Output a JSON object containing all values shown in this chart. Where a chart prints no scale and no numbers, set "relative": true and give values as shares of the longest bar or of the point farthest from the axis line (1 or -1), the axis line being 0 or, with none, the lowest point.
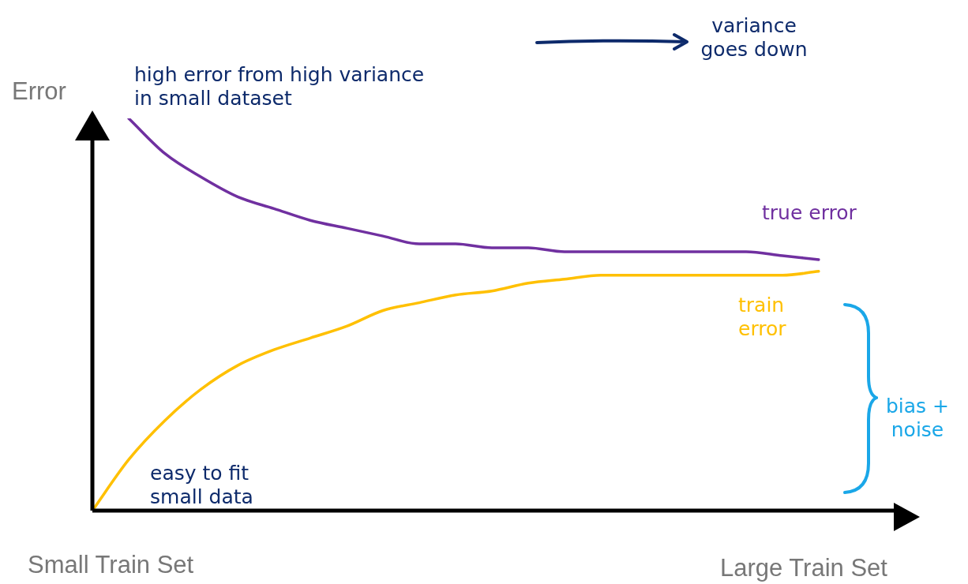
{
  "chart_data": {
    "type": "line",
    "relative": true,
    "ylabel": "Error",
    "categories": [
      null,
      null,
      null,
      null,
      null,
      null,
      null,
      null,
      null,
      null,
      null,
      null,
      null,
      null,
      null,
      null,
      null,
      null,
      null,
      null,
      null
    ],
    "series": [
      {
        "name": "true error",
        "color": "#7030a0",
        "values": [
          null,
          1.0,
          0.91,
          0.85,
          0.8,
          0.77,
          0.74,
          0.72,
          0.7,
          0.68,
          0.68,
          0.67,
          0.67,
          0.66,
          0.66,
          0.66,
          0.66,
          0.66,
          0.66,
          0.65,
          0.64
        ]
      },
      {
        "name": "train error",
        "color": "#ffc000",
        "values": [
          0,
          0.13,
          0.23,
          0.31,
          0.37,
          0.41,
          0.44,
          0.47,
          0.51,
          0.53,
          0.55,
          0.56,
          0.58,
          0.59,
          0.6,
          0.6,
          0.6,
          0.6,
          0.6,
          0.6,
          0.61
        ]
      }
    ],
    "annotations": [
      "Small Train Set",
      "Large Train Set",
      "high error from high variance in small dataset",
      "easy to fit small data",
      "variance goes down",
      "bias + noise"
    ],
    "legend": false,
    "marker": "none",
    "line_style": "solid"
  }
}
